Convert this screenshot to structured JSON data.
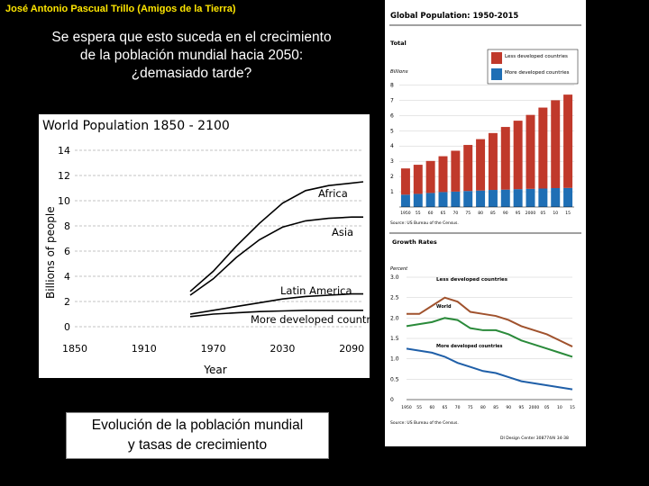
{
  "header": {
    "author": "José Antonio Pascual Trillo (Amigos de la Tierra)"
  },
  "headline": {
    "line1": "Se espera que esto suceda en el crecimiento",
    "line2": "de la población mundial hacia 2050:",
    "line3": "¿demasiado tarde?"
  },
  "caption": {
    "line1": "Evolución de la población mundial",
    "line2": "y tasas de crecimiento"
  },
  "colors": {
    "ldc": "#c0392b",
    "mdc": "#1f6fb5",
    "world": "#a0522d",
    "green": "#2a8a3a",
    "blue": "#1f5fa8"
  },
  "chart_data": [
    {
      "type": "area",
      "title": "World Population 1850 - 2100",
      "xlabel": "Year",
      "ylabel": "Billions of people",
      "x_ticks": [
        "1850",
        "1910",
        "1970",
        "2030",
        "2090"
      ],
      "y_ticks": [
        "0",
        "2",
        "4",
        "6",
        "8",
        "10",
        "12",
        "14"
      ],
      "xlim": [
        1850,
        2100
      ],
      "ylim": [
        0,
        14
      ],
      "series": [
        {
          "name": "More developed countries",
          "label": "More developed countries",
          "x": [
            1950,
            1970,
            1990,
            2010,
            2030,
            2050,
            2070,
            2090,
            2100
          ],
          "y": [
            0.8,
            1.0,
            1.1,
            1.2,
            1.25,
            1.3,
            1.3,
            1.3,
            1.3
          ]
        },
        {
          "name": "Latin America",
          "label": "Latin America",
          "x": [
            1950,
            1970,
            1990,
            2010,
            2030,
            2050,
            2070,
            2090,
            2100
          ],
          "y": [
            1.0,
            1.3,
            1.6,
            1.9,
            2.2,
            2.4,
            2.5,
            2.6,
            2.6
          ]
        },
        {
          "name": "Asia",
          "label": "Asia",
          "x": [
            1950,
            1970,
            1990,
            2010,
            2030,
            2050,
            2070,
            2090,
            2100
          ],
          "y": [
            2.5,
            3.8,
            5.5,
            6.9,
            7.9,
            8.4,
            8.6,
            8.7,
            8.7
          ]
        },
        {
          "name": "Africa",
          "label": "Africa",
          "x": [
            1950,
            1970,
            1990,
            2010,
            2030,
            2050,
            2070,
            2090,
            2100
          ],
          "y": [
            2.8,
            4.4,
            6.4,
            8.2,
            9.8,
            10.8,
            11.2,
            11.4,
            11.5
          ]
        }
      ]
    },
    {
      "type": "bar",
      "title": "Global Population: 1950-2015",
      "subtitle": "Total",
      "ylabel": "Billions",
      "y_ticks": [
        "1",
        "2",
        "3",
        "4",
        "5",
        "6",
        "7",
        "8"
      ],
      "ylim": [
        0,
        8.5
      ],
      "categories": [
        "1950",
        "55",
        "60",
        "65",
        "70",
        "75",
        "80",
        "85",
        "90",
        "95",
        "2000",
        "05",
        "10",
        "15"
      ],
      "x_tick_labels": [
        "1950",
        "55",
        "60",
        "65",
        "70",
        "75",
        "80",
        "85",
        "90",
        "95",
        "2000",
        "05",
        "10",
        "15"
      ],
      "series": [
        {
          "name": "More developed countries",
          "values": [
            0.81,
            0.86,
            0.92,
            0.98,
            1.01,
            1.05,
            1.08,
            1.12,
            1.14,
            1.17,
            1.19,
            1.21,
            1.24,
            1.25
          ]
        },
        {
          "name": "Less developed countries",
          "values": [
            1.72,
            1.91,
            2.1,
            2.35,
            2.68,
            3.02,
            3.37,
            3.73,
            4.11,
            4.49,
            4.85,
            5.31,
            5.76,
            6.12
          ]
        }
      ],
      "legend": [
        "Less developed countries",
        "More developed countries"
      ],
      "source": "Source: US Bureau of the Census."
    },
    {
      "type": "line",
      "title": "Growth Rates",
      "ylabel": "Percent",
      "y_ticks": [
        "0",
        "0.5",
        "1.0",
        "1.5",
        "2.0",
        "2.5",
        "3.0"
      ],
      "ylim": [
        0,
        3.0
      ],
      "x_tick_labels": [
        "1950",
        "55",
        "60",
        "65",
        "70",
        "75",
        "80",
        "85",
        "90",
        "95",
        "2000",
        "05",
        "10",
        "15"
      ],
      "series": [
        {
          "name": "Less developed countries",
          "label": "Less developed countries",
          "values": [
            2.1,
            2.1,
            2.3,
            2.5,
            2.4,
            2.15,
            2.1,
            2.05,
            1.95,
            1.8,
            1.7,
            1.6,
            1.45,
            1.3
          ]
        },
        {
          "name": "World",
          "label": "World",
          "values": [
            1.8,
            1.85,
            1.9,
            2.0,
            1.95,
            1.75,
            1.7,
            1.7,
            1.6,
            1.45,
            1.35,
            1.25,
            1.15,
            1.05
          ]
        },
        {
          "name": "More developed countries",
          "label": "More developed countries",
          "values": [
            1.25,
            1.2,
            1.15,
            1.05,
            0.9,
            0.8,
            0.7,
            0.65,
            0.55,
            0.45,
            0.4,
            0.35,
            0.3,
            0.25
          ]
        }
      ],
      "source": "Source: US Bureau of the Census.",
      "credit": "DI Design Center 308774AI 34-38"
    }
  ]
}
